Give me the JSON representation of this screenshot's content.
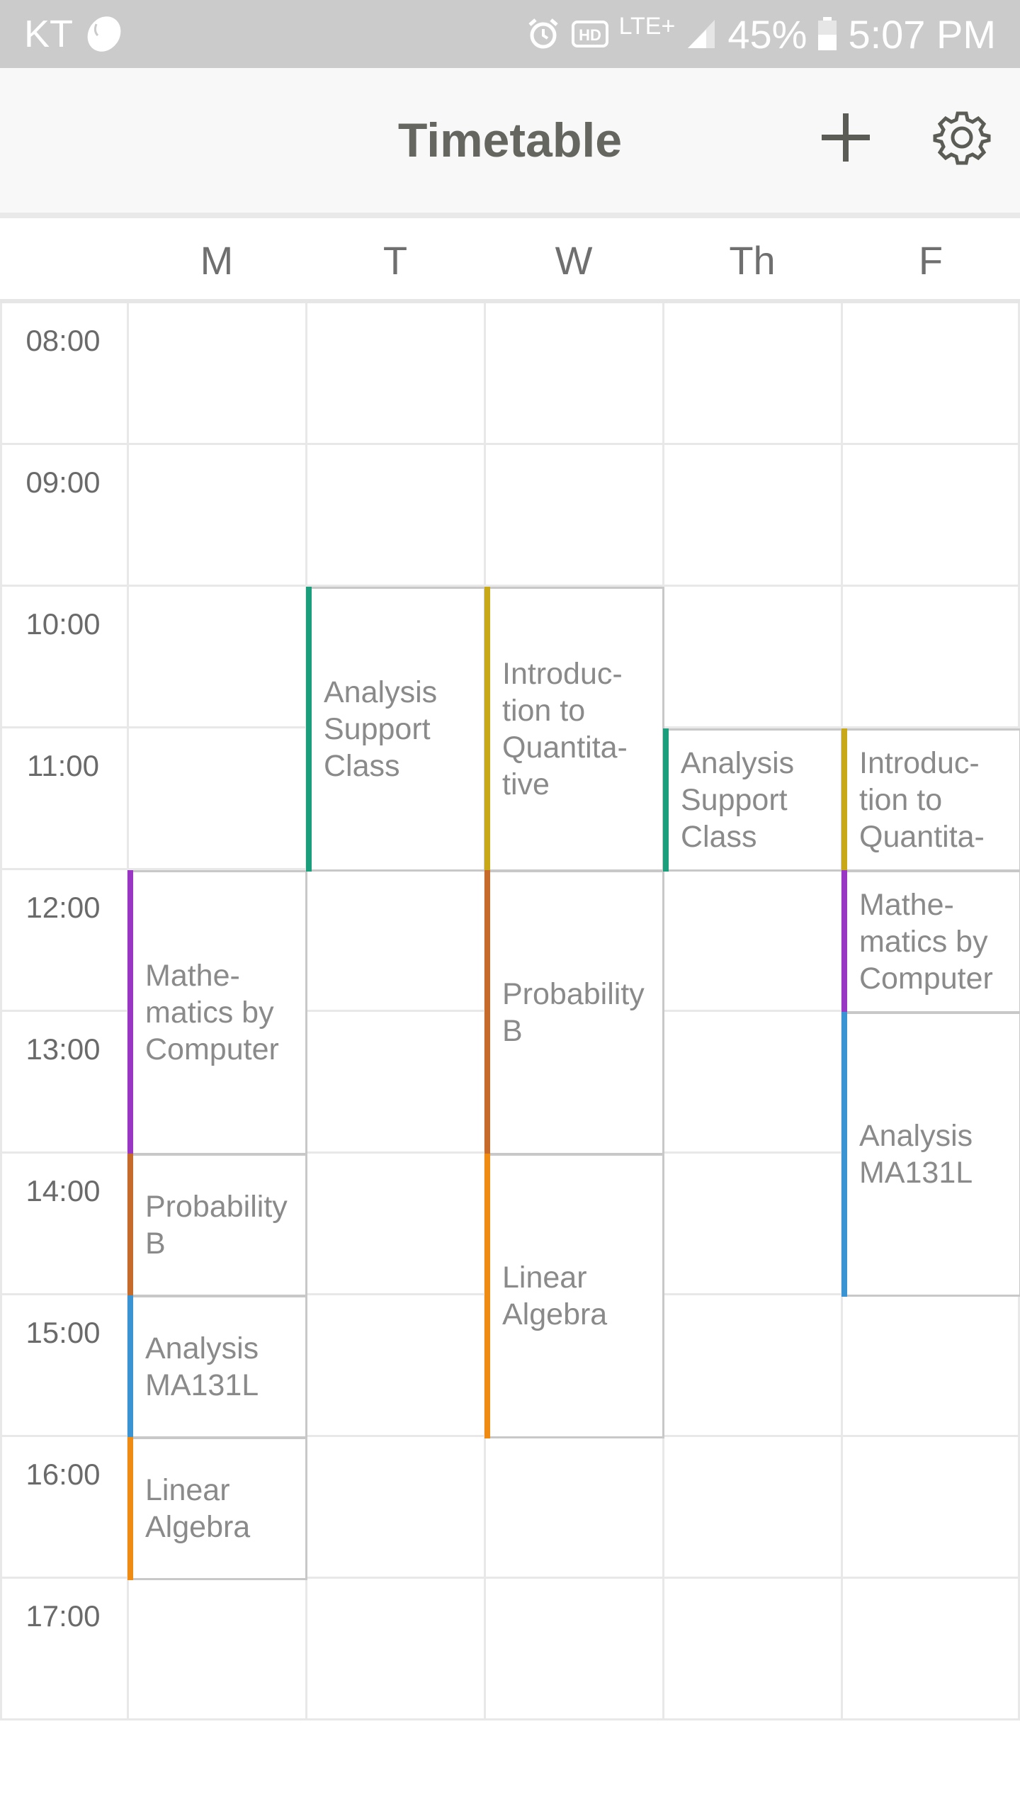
{
  "status_bar": {
    "carrier": "KT",
    "network": "LTE+",
    "battery": "45%",
    "time": "5:07 PM",
    "icons": [
      "bean-icon",
      "alarm-icon",
      "hd-icon",
      "signal-icon",
      "battery-icon"
    ]
  },
  "app_bar": {
    "title": "Timetable",
    "add_icon": "plus-icon",
    "settings_icon": "gear-icon"
  },
  "days": [
    "M",
    "T",
    "W",
    "Th",
    "F"
  ],
  "times": [
    "08:00",
    "09:00",
    "10:00",
    "11:00",
    "12:00",
    "13:00",
    "14:00",
    "15:00",
    "16:00",
    "17:00"
  ],
  "colors": {
    "teal": "#1a9e7c",
    "mustard": "#c9a818",
    "purple": "#9a36c4",
    "rust": "#c56a2a",
    "blue": "#3a94d4",
    "orange": "#ef8a12"
  },
  "events": [
    {
      "day": 0,
      "start": "12:00",
      "end": "14:00",
      "label": "Mathe-\nmatics by\nComputer",
      "color": "#9a36c4"
    },
    {
      "day": 0,
      "start": "14:00",
      "end": "15:00",
      "label": "Probability\nB",
      "color": "#c56a2a"
    },
    {
      "day": 0,
      "start": "15:00",
      "end": "16:00",
      "label": "Analysis\nMA131L",
      "color": "#3a94d4"
    },
    {
      "day": 0,
      "start": "16:00",
      "end": "17:00",
      "label": "Linear\nAlgebra",
      "color": "#ef8a12"
    },
    {
      "day": 1,
      "start": "10:00",
      "end": "12:00",
      "label": "Analysis\nSupport\nClass",
      "color": "#1a9e7c"
    },
    {
      "day": 2,
      "start": "10:00",
      "end": "12:00",
      "label": "Introduc-\ntion to\nQuantita-\ntive",
      "color": "#c9a818"
    },
    {
      "day": 2,
      "start": "12:00",
      "end": "14:00",
      "label": "Probability\nB",
      "color": "#c56a2a"
    },
    {
      "day": 2,
      "start": "14:00",
      "end": "16:00",
      "label": "Linear\nAlgebra",
      "color": "#ef8a12"
    },
    {
      "day": 3,
      "start": "11:00",
      "end": "12:00",
      "label": "Analysis\nSupport\nClass",
      "color": "#1a9e7c"
    },
    {
      "day": 4,
      "start": "11:00",
      "end": "12:00",
      "label": "Introduc-\ntion to\nQuantita-",
      "color": "#c9a818"
    },
    {
      "day": 4,
      "start": "12:00",
      "end": "13:00",
      "label": "Mathe-\nmatics by\nComputer",
      "color": "#9a36c4"
    },
    {
      "day": 4,
      "start": "13:00",
      "end": "15:00",
      "label": "Analysis\nMA131L",
      "color": "#3a94d4"
    }
  ]
}
